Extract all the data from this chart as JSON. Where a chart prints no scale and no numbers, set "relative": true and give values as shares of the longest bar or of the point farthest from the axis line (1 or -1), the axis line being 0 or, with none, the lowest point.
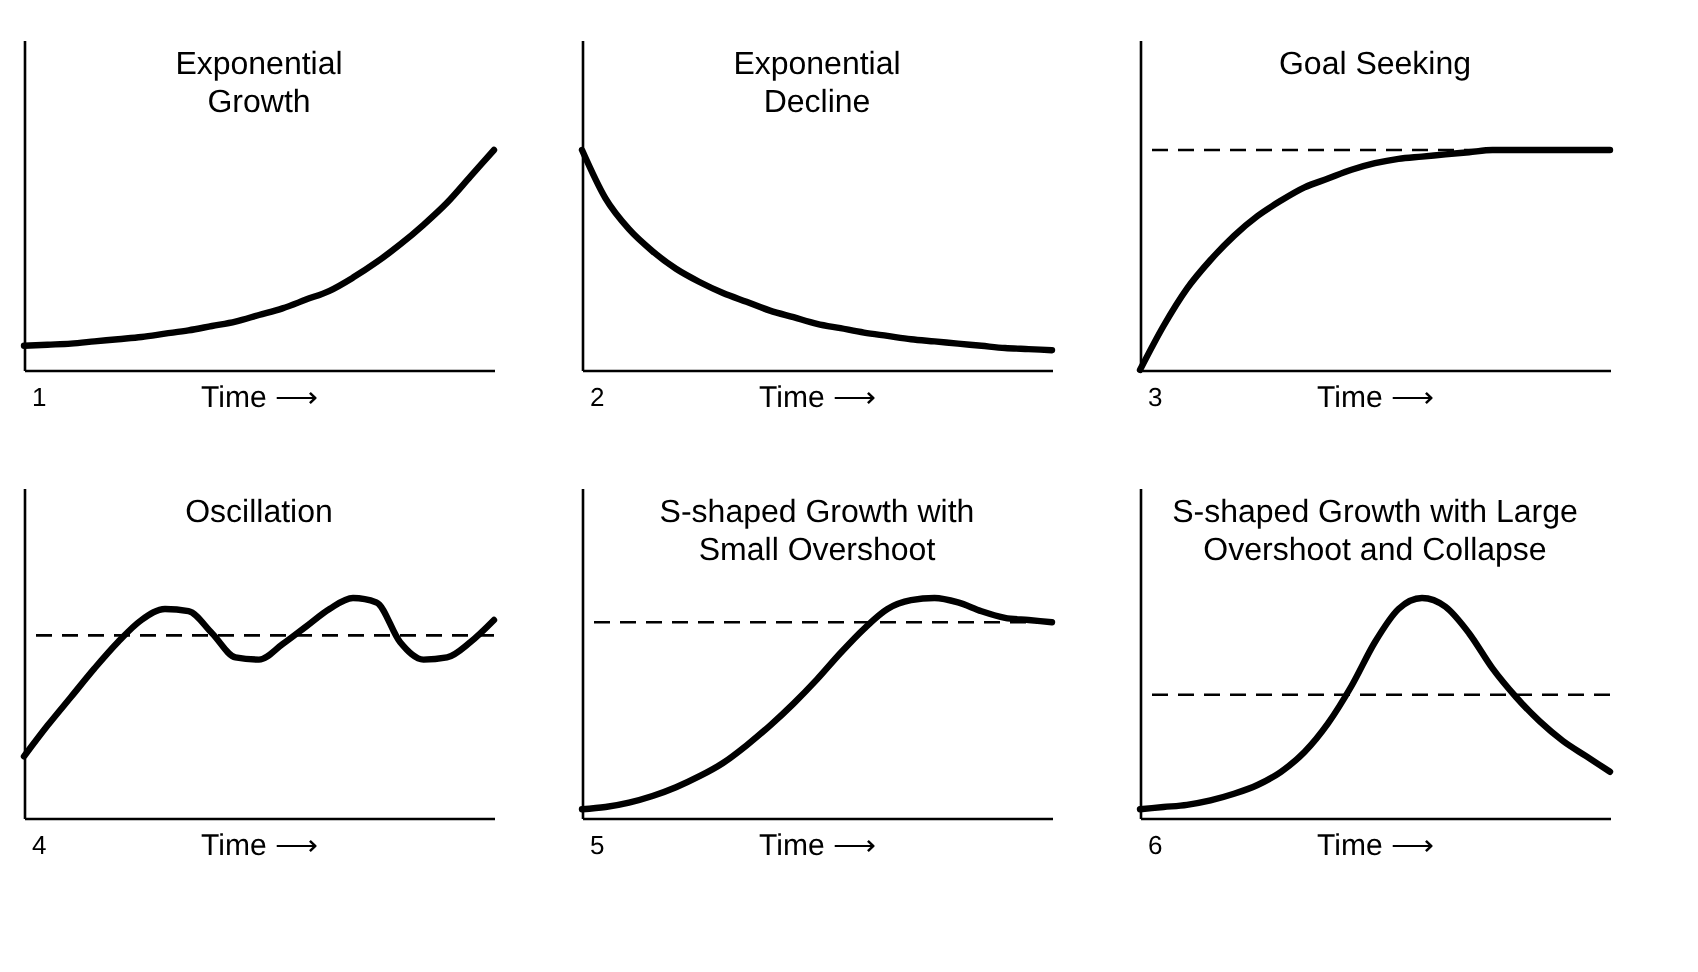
{
  "chart_data": [
    {
      "type": "line",
      "title": "Exponential\nGrowth",
      "xlabel": "Time ⟶",
      "relative": true,
      "grid": false,
      "tick_labels": false,
      "annotations": [
        "1"
      ],
      "categories": [
        null,
        null,
        null,
        null,
        null,
        null,
        null,
        null,
        null,
        null,
        null,
        null,
        null,
        null,
        null,
        null,
        null,
        null,
        null,
        null,
        null
      ],
      "series": [
        {
          "color": "#000000",
          "values": [
            0.11,
            0.115,
            0.12,
            0.13,
            0.14,
            0.15,
            0.165,
            0.18,
            0.2,
            0.22,
            0.25,
            0.28,
            0.32,
            0.36,
            0.42,
            0.49,
            0.57,
            0.66,
            0.76,
            0.88,
            1.0
          ]
        }
      ]
    },
    {
      "type": "line",
      "title": "Exponential\nDecline",
      "xlabel": "Time ⟶",
      "relative": true,
      "grid": false,
      "tick_labels": false,
      "annotations": [
        "2"
      ],
      "categories": [
        null,
        null,
        null,
        null,
        null,
        null,
        null,
        null,
        null,
        null,
        null,
        null,
        null,
        null,
        null,
        null,
        null,
        null,
        null,
        null,
        null
      ],
      "series": [
        {
          "color": "#000000",
          "values": [
            1.0,
            0.78,
            0.64,
            0.54,
            0.46,
            0.4,
            0.35,
            0.31,
            0.27,
            0.24,
            0.21,
            0.19,
            0.17,
            0.155,
            0.14,
            0.13,
            0.12,
            0.11,
            0.1,
            0.095,
            0.09
          ]
        }
      ]
    },
    {
      "type": "line",
      "title": "Goal Seeking",
      "xlabel": "Time ⟶",
      "relative": true,
      "grid": false,
      "tick_labels": false,
      "annotations": [
        "3"
      ],
      "categories": [
        null,
        null,
        null,
        null,
        null,
        null,
        null,
        null,
        null,
        null,
        null,
        null,
        null,
        null,
        null,
        null,
        null,
        null,
        null,
        null,
        null
      ],
      "ref_lines": [
        {
          "axis": "y",
          "value": 1.0,
          "color": "#000000",
          "line_style": "dashed"
        }
      ],
      "series": [
        {
          "color": "#000000",
          "values": [
            0.0,
            0.2,
            0.37,
            0.5,
            0.61,
            0.7,
            0.77,
            0.83,
            0.87,
            0.91,
            0.94,
            0.96,
            0.97,
            0.98,
            0.99,
            1.0,
            1.0,
            1.0,
            1.0,
            1.0,
            1.0
          ]
        }
      ]
    },
    {
      "type": "line",
      "title": "Oscillation",
      "xlabel": "Time ⟶",
      "relative": true,
      "grid": false,
      "tick_labels": false,
      "annotations": [
        "4"
      ],
      "categories": [
        null,
        null,
        null,
        null,
        null,
        null,
        null,
        null,
        null,
        null,
        null,
        null,
        null,
        null,
        null,
        null,
        null,
        null,
        null,
        null,
        null
      ],
      "ref_lines": [
        {
          "axis": "y",
          "value": 0.83,
          "color": "#000000",
          "line_style": "dashed"
        }
      ],
      "series": [
        {
          "color": "#000000",
          "values": [
            0.28,
            0.42,
            0.55,
            0.68,
            0.8,
            0.9,
            0.95,
            0.94,
            0.84,
            0.73,
            0.72,
            0.79,
            0.87,
            0.95,
            1.0,
            0.98,
            0.8,
            0.72,
            0.73,
            0.8,
            0.9
          ]
        }
      ]
    },
    {
      "type": "line",
      "title": "S-shaped Growth with\nSmall Overshoot",
      "xlabel": "Time ⟶",
      "relative": true,
      "grid": false,
      "tick_labels": false,
      "annotations": [
        "5"
      ],
      "categories": [
        null,
        null,
        null,
        null,
        null,
        null,
        null,
        null,
        null,
        null,
        null,
        null,
        null,
        null,
        null,
        null,
        null,
        null,
        null,
        null,
        null
      ],
      "ref_lines": [
        {
          "axis": "y",
          "value": 0.89,
          "color": "#000000",
          "line_style": "dashed"
        }
      ],
      "series": [
        {
          "color": "#000000",
          "values": [
            0.04,
            0.05,
            0.07,
            0.1,
            0.14,
            0.19,
            0.25,
            0.33,
            0.42,
            0.52,
            0.63,
            0.75,
            0.86,
            0.95,
            0.99,
            1.0,
            0.98,
            0.94,
            0.91,
            0.9,
            0.89
          ]
        }
      ]
    },
    {
      "type": "line",
      "title": "S-shaped Growth with Large\nOvershoot and Collapse",
      "xlabel": "Time ⟶",
      "relative": true,
      "grid": false,
      "tick_labels": false,
      "annotations": [
        "6"
      ],
      "categories": [
        null,
        null,
        null,
        null,
        null,
        null,
        null,
        null,
        null,
        null,
        null,
        null,
        null,
        null,
        null,
        null,
        null,
        null,
        null,
        null,
        null
      ],
      "ref_lines": [
        {
          "axis": "y",
          "value": 0.56,
          "color": "#000000",
          "line_style": "dashed"
        }
      ],
      "series": [
        {
          "color": "#000000",
          "values": [
            0.04,
            0.05,
            0.06,
            0.08,
            0.11,
            0.15,
            0.21,
            0.3,
            0.43,
            0.6,
            0.8,
            0.95,
            1.0,
            0.96,
            0.84,
            0.68,
            0.55,
            0.44,
            0.35,
            0.28,
            0.21
          ]
        }
      ]
    }
  ]
}
